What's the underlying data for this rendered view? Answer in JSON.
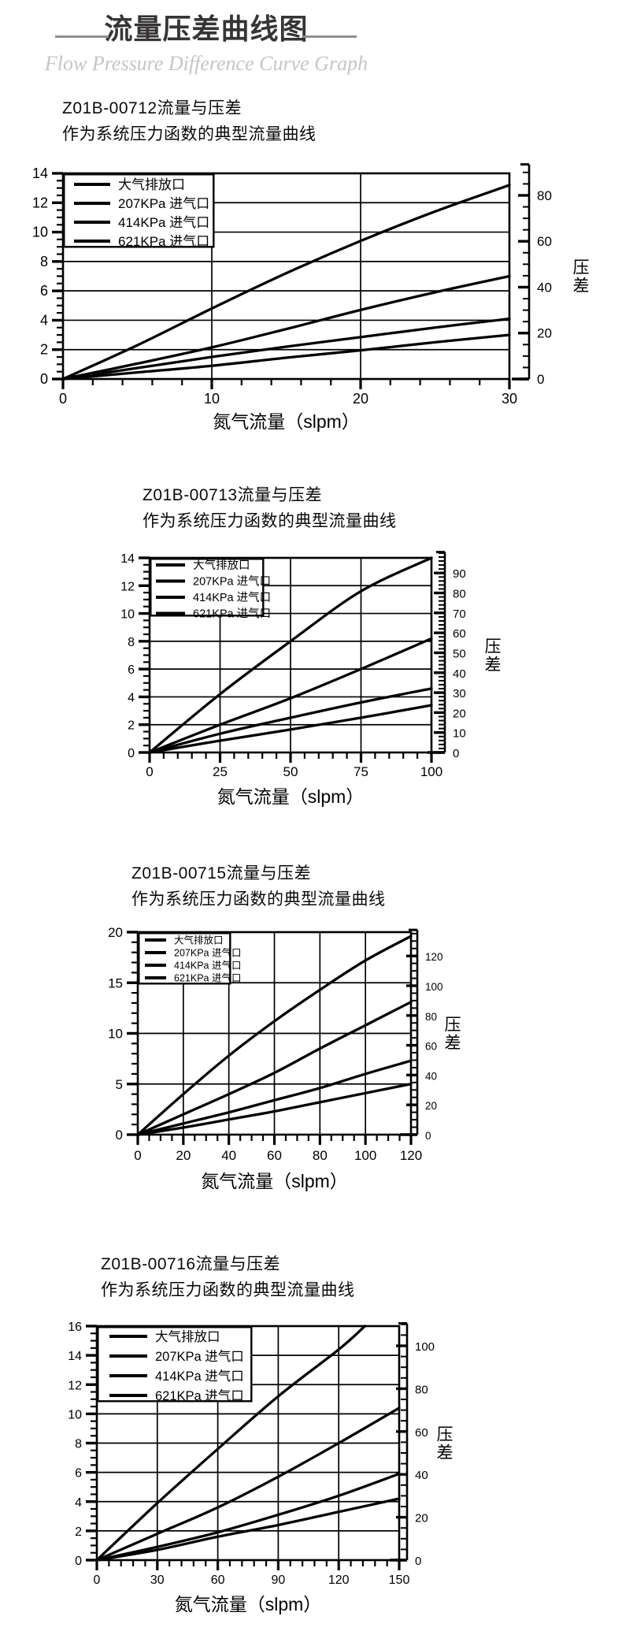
{
  "header": {
    "title": "流量压差曲线图",
    "subtitle": "Flow Pressure Difference Curve Graph"
  },
  "chart_data": [
    {
      "type": "line",
      "title": "Z01B-00712流量与压差",
      "subtitle": "作为系统压力函数的典型流量曲线",
      "xlabel": "氮气流量（slpm）",
      "right_label": "压差",
      "legend": [
        "大气排放口",
        "207KPa 进气口",
        "414KPa 进气口",
        "621KPa 进气口"
      ],
      "legend_position": "top-left",
      "grid": true,
      "x_axis": {
        "min": 0,
        "max": 30,
        "labels": [
          0,
          10,
          20,
          30
        ],
        "minor_step": 2
      },
      "left_axis": {
        "min": 0,
        "max": 14,
        "labels": [
          0,
          2,
          4,
          6,
          8,
          10,
          12,
          14
        ],
        "minor_step": 0.5
      },
      "right_axis": {
        "labels": [
          0,
          20,
          40,
          60,
          80
        ],
        "minor_step": 5,
        "plot_top_value": 89.6,
        "axis_top_value": 93.5
      },
      "series": [
        {
          "name": "大气排放口",
          "x": [
            0,
            5,
            10,
            15,
            20,
            25,
            30
          ],
          "y": [
            0,
            2.3,
            4.8,
            7.2,
            9.4,
            11.4,
            13.2
          ]
        },
        {
          "name": "207KPa 进气口",
          "x": [
            0,
            5,
            10,
            15,
            20,
            25,
            30
          ],
          "y": [
            0,
            1.05,
            2.15,
            3.4,
            4.7,
            5.9,
            7.0
          ]
        },
        {
          "name": "414KPa 进气口",
          "x": [
            0,
            5,
            10,
            15,
            20,
            25,
            30
          ],
          "y": [
            0,
            0.75,
            1.5,
            2.2,
            2.85,
            3.5,
            4.1
          ]
        },
        {
          "name": "621KPa 进气口",
          "x": [
            0,
            5,
            10,
            15,
            20,
            25,
            30
          ],
          "y": [
            0,
            0.45,
            0.9,
            1.45,
            1.95,
            2.5,
            3.0
          ]
        }
      ]
    },
    {
      "type": "line",
      "title": "Z01B-00713流量与压差",
      "subtitle": "作为系统压力函数的典型流量曲线",
      "xlabel": "氮气流量（slpm）",
      "right_label": "压差",
      "legend": [
        "大气排放口",
        "207KPa 进气口",
        "414KPa 进气口",
        "621KPa 进气口"
      ],
      "legend_position": "top-left",
      "grid": true,
      "x_axis": {
        "min": 0,
        "max": 100,
        "labels": [
          0,
          25,
          50,
          75,
          100
        ],
        "minor_step": 5
      },
      "left_axis": {
        "min": 0,
        "max": 14,
        "labels": [
          0,
          2,
          4,
          6,
          8,
          10,
          12,
          14
        ],
        "minor_step": 0.5
      },
      "right_axis": {
        "labels": [
          0,
          10,
          20,
          30,
          40,
          50,
          60,
          70,
          80,
          90
        ],
        "minor_step": 2,
        "plot_top_value": 97.6,
        "axis_top_value": 100.5
      },
      "series": [
        {
          "name": "大气排放口",
          "x": [
            0,
            25,
            50,
            75,
            100
          ],
          "y": [
            0,
            4.2,
            8.0,
            11.6,
            14.0
          ]
        },
        {
          "name": "207KPa 进气口",
          "x": [
            0,
            25,
            50,
            75,
            100
          ],
          "y": [
            0,
            2.0,
            3.9,
            6.0,
            8.2
          ]
        },
        {
          "name": "414KPa 进气口",
          "x": [
            0,
            25,
            50,
            75,
            100
          ],
          "y": [
            0,
            1.35,
            2.5,
            3.6,
            4.6
          ]
        },
        {
          "name": "621KPa 进气口",
          "x": [
            0,
            25,
            50,
            75,
            100
          ],
          "y": [
            0,
            0.85,
            1.65,
            2.5,
            3.4
          ]
        }
      ]
    },
    {
      "type": "line",
      "title": "Z01B-00715流量与压差",
      "subtitle": "作为系统压力函数的典型流量曲线",
      "xlabel": "氮气流量（slpm）",
      "right_label": "压差",
      "legend": [
        "大气排放口",
        "207KPa 进气口",
        "414KPa 进气口",
        "621KPa 进气口"
      ],
      "legend_position": "top-left",
      "grid": true,
      "x_axis": {
        "min": 0,
        "max": 120,
        "labels": [
          0,
          20,
          40,
          60,
          80,
          100,
          120
        ],
        "minor_step": 5
      },
      "left_axis": {
        "min": 0,
        "max": 20,
        "labels": [
          0,
          5,
          10,
          15,
          20
        ],
        "minor_step": 1
      },
      "right_axis": {
        "labels": [
          0,
          20,
          40,
          60,
          80,
          100,
          120
        ],
        "minor_step": 5,
        "plot_top_value": 136,
        "axis_top_value": 137.5
      },
      "series": [
        {
          "name": "大气排放口",
          "x": [
            0,
            20,
            40,
            60,
            80,
            100,
            120
          ],
          "y": [
            0,
            4.0,
            7.8,
            11.2,
            14.3,
            17.2,
            19.6
          ]
        },
        {
          "name": "207KPa 进气口",
          "x": [
            0,
            20,
            40,
            60,
            80,
            100,
            120
          ],
          "y": [
            0,
            2.0,
            4.0,
            6.1,
            8.5,
            10.8,
            13.1
          ]
        },
        {
          "name": "414KPa 进气口",
          "x": [
            0,
            20,
            40,
            60,
            80,
            100,
            120
          ],
          "y": [
            0,
            1.1,
            2.2,
            3.4,
            4.6,
            6.0,
            7.3
          ]
        },
        {
          "name": "621KPa 进气口",
          "x": [
            0,
            20,
            40,
            60,
            80,
            100,
            120
          ],
          "y": [
            0,
            0.7,
            1.5,
            2.3,
            3.2,
            4.1,
            5.0
          ]
        }
      ]
    },
    {
      "type": "line",
      "title": "Z01B-00716流量与压差",
      "subtitle": "作为系统压力函数的典型流量曲线",
      "xlabel": "氮气流量（slpm）",
      "right_label": "压差",
      "legend": [
        "大气排放口",
        "207KPa 进气口",
        "414KPa 进气口",
        "621KPa 进气口"
      ],
      "legend_position": "top-left",
      "grid": true,
      "x_axis": {
        "min": 0,
        "max": 150,
        "labels": [
          0,
          30,
          60,
          90,
          120,
          150
        ],
        "minor_step": 6
      },
      "left_axis": {
        "min": 0,
        "max": 16,
        "labels": [
          0,
          2,
          4,
          6,
          8,
          10,
          12,
          14,
          16
        ],
        "minor_step": 0.5
      },
      "right_axis": {
        "labels": [
          0,
          20,
          40,
          60,
          80,
          100
        ],
        "minor_step": 5,
        "plot_top_value": 109.2,
        "axis_top_value": 110.5
      },
      "series": [
        {
          "name": "大气排放口",
          "x": [
            0,
            30,
            60,
            90,
            120,
            133
          ],
          "y": [
            0,
            3.9,
            7.6,
            11.2,
            14.4,
            16.0
          ]
        },
        {
          "name": "207KPa 进气口",
          "x": [
            0,
            30,
            60,
            90,
            120,
            150
          ],
          "y": [
            0,
            1.8,
            3.6,
            5.7,
            8.0,
            10.4
          ]
        },
        {
          "name": "414KPa 进气口",
          "x": [
            0,
            30,
            60,
            90,
            120,
            150
          ],
          "y": [
            0,
            0.9,
            1.9,
            3.1,
            4.4,
            5.9
          ]
        },
        {
          "name": "621KPa 进气口",
          "x": [
            0,
            30,
            60,
            90,
            120,
            150
          ],
          "y": [
            0,
            0.7,
            1.6,
            2.4,
            3.3,
            4.2
          ]
        }
      ]
    }
  ]
}
